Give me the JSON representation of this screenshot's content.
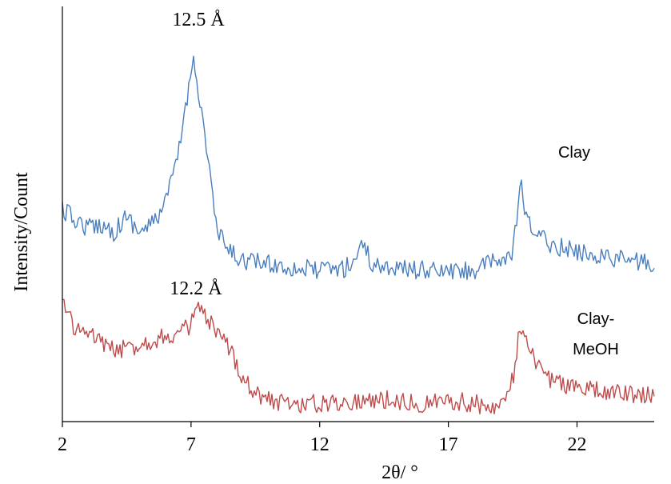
{
  "chart_data": {
    "type": "line",
    "title": "",
    "xlabel": "2θ/ °",
    "ylabel": "Intensity/Count",
    "xlim": [
      2,
      25
    ],
    "xticks": [
      2,
      7,
      12,
      17,
      22
    ],
    "yticks_shown": false,
    "grid": false,
    "colors": {
      "Clay": "#4a7ebf",
      "Clay-MeOH": "#bf4a4a"
    },
    "annotations": [
      {
        "text": "12.5 Å",
        "series": "Clay",
        "x": 7.1
      },
      {
        "text": "12.2 Å",
        "series": "Clay-MeOH",
        "x": 7.0
      }
    ],
    "series": [
      {
        "name": "Clay",
        "label_lines": [
          "Clay"
        ],
        "x": [
          2.0,
          2.5,
          3.0,
          3.5,
          4.0,
          4.5,
          5.0,
          5.5,
          6.0,
          6.25,
          6.5,
          6.75,
          7.0,
          7.1,
          7.25,
          7.5,
          7.75,
          8.0,
          8.5,
          9.0,
          10.0,
          11.0,
          12.0,
          13.0,
          13.5,
          13.6,
          14.0,
          15.0,
          16.0,
          17.0,
          18.0,
          19.0,
          19.5,
          19.7,
          19.8,
          20.0,
          20.5,
          21.0,
          22.0,
          23.0,
          24.0,
          25.0
        ],
        "y": [
          262,
          275,
          285,
          280,
          290,
          270,
          290,
          280,
          255,
          225,
          195,
          140,
          95,
          60,
          110,
          160,
          220,
          290,
          315,
          325,
          330,
          335,
          338,
          335,
          320,
          295,
          330,
          335,
          338,
          340,
          338,
          325,
          320,
          260,
          225,
          275,
          295,
          305,
          315,
          320,
          325,
          330
        ]
      },
      {
        "name": "Clay-MeOH",
        "label_lines": [
          "Clay-",
          "MeOH"
        ],
        "x": [
          2.0,
          2.5,
          3.0,
          3.5,
          4.0,
          4.5,
          5.0,
          5.5,
          6.0,
          6.5,
          7.0,
          7.25,
          7.5,
          7.75,
          8.0,
          8.5,
          9.0,
          9.5,
          10.0,
          11.0,
          12.0,
          13.0,
          14.0,
          15.0,
          16.0,
          17.0,
          18.0,
          19.0,
          19.3,
          19.6,
          19.75,
          20.0,
          20.5,
          21.0,
          22.0,
          23.0,
          24.0,
          25.0
        ],
        "y": [
          380,
          410,
          420,
          425,
          440,
          435,
          430,
          425,
          420,
          420,
          405,
          385,
          395,
          405,
          420,
          435,
          470,
          490,
          500,
          505,
          505,
          502,
          500,
          500,
          505,
          500,
          505,
          508,
          498,
          460,
          410,
          430,
          460,
          475,
          485,
          490,
          493,
          495
        ]
      }
    ]
  }
}
